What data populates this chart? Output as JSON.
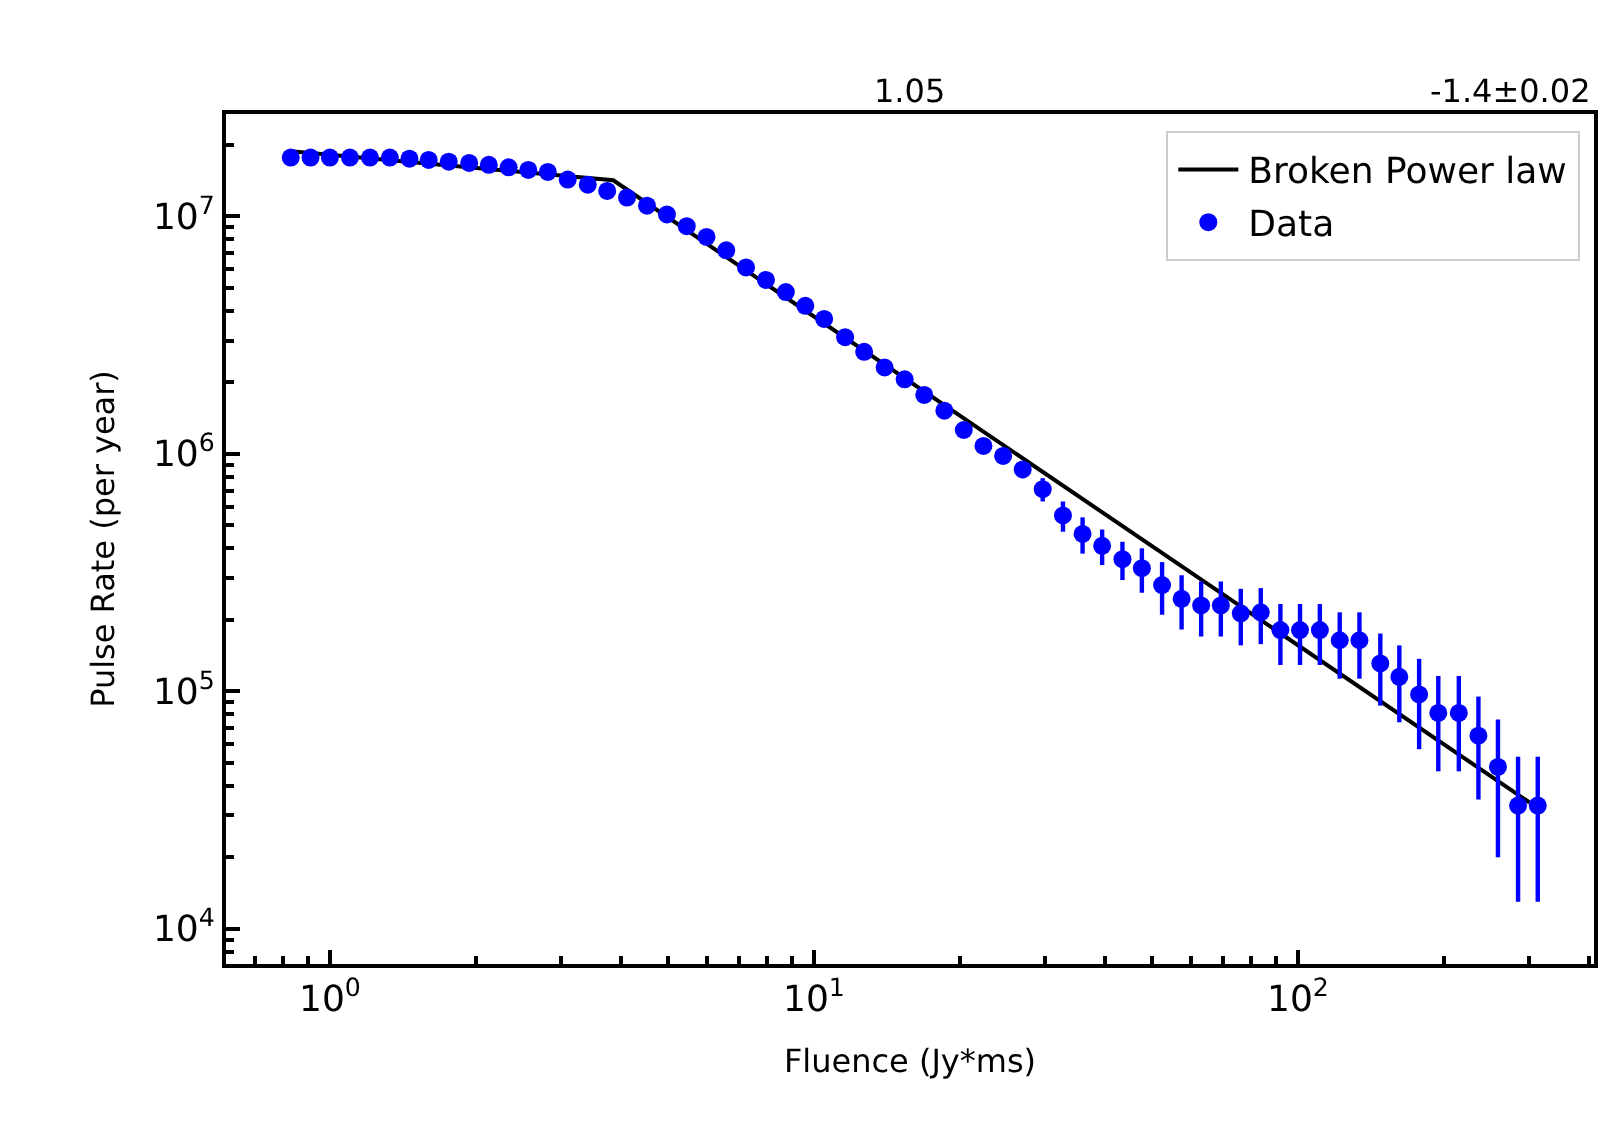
{
  "chart_data": {
    "type": "scatter",
    "xlabel": "Fluence (Jy*ms)",
    "ylabel": "Pulse Rate (per year)",
    "annotations": [
      "1.05",
      "-1.4±0.02"
    ],
    "log": "xy",
    "legend": "top right",
    "xlim": [
      0.61,
      409
    ],
    "ylim": [
      7100,
      27000000
    ],
    "xticks": [
      {
        "value": 1,
        "label": "10$^{0}$"
      },
      {
        "value": 10,
        "label": "10$^{1}$"
      },
      {
        "value": 100,
        "label": "10$^{2}$"
      }
    ],
    "yticks": [
      {
        "value": 10000,
        "label": "10$^{4}$"
      },
      {
        "value": 100000,
        "label": "10$^{5}$"
      },
      {
        "value": 1000000,
        "label": "10$^{6}$"
      },
      {
        "value": 10000000,
        "label": "10$^{7}$"
      }
    ],
    "series": [
      {
        "name": "Broken Power law",
        "type": "line",
        "color": "#000000",
        "line_style": "solid",
        "marker": "none",
        "x": [
          0.83,
          3.85,
          301
        ],
        "values": [
          18800000,
          14200000,
          34000
        ]
      },
      {
        "name": "Data",
        "color": "#0000ff",
        "marker": "circle",
        "x": [
          0.83,
          0.912,
          1.0,
          1.1,
          1.21,
          1.33,
          1.46,
          1.6,
          1.76,
          1.94,
          2.13,
          2.34,
          2.57,
          2.82,
          3.1,
          3.41,
          3.74,
          4.11,
          4.52,
          4.97,
          5.46,
          6.0,
          6.59,
          7.24,
          7.96,
          8.75,
          9.6,
          10.5,
          11.6,
          12.7,
          14.0,
          15.4,
          16.9,
          18.6,
          20.4,
          22.4,
          24.6,
          27.0,
          29.7,
          32.7,
          35.9,
          39.4,
          43.4,
          47.6,
          52.4,
          57.5,
          63.1,
          69.3,
          76.2,
          83.8,
          92.0,
          101,
          111,
          122,
          134,
          148,
          162,
          178,
          195,
          215,
          236,
          259,
          285,
          313
        ],
        "values": [
          17700000,
          17700000,
          17700000,
          17700000,
          17700000,
          17700000,
          17500000,
          17300000,
          17000000,
          16800000,
          16500000,
          16100000,
          15700000,
          15400000,
          14300000,
          13600000,
          12800000,
          12000000,
          11100000,
          10200000,
          9100000,
          8200000,
          7200000,
          6100000,
          5400000,
          4800000,
          4200000,
          3700000,
          3100000,
          2690000,
          2310000,
          2060000,
          1770000,
          1520000,
          1260000,
          1080000,
          980000,
          860000,
          710000,
          550000,
          460000,
          410000,
          360000,
          330000,
          280000,
          245000,
          230000,
          230000,
          213000,
          215000,
          181000,
          181000,
          181000,
          164000,
          164000,
          131000,
          115000,
          97000,
          81000,
          81000,
          65000,
          48000,
          33000,
          33000
        ],
        "errors": [
          null,
          null,
          null,
          null,
          null,
          null,
          null,
          null,
          null,
          null,
          null,
          null,
          null,
          null,
          null,
          null,
          null,
          null,
          null,
          null,
          null,
          null,
          null,
          null,
          null,
          null,
          null,
          null,
          null,
          null,
          null,
          null,
          null,
          null,
          null,
          null,
          null,
          70000,
          80000,
          80000,
          80000,
          70000,
          66000,
          70000,
          70000,
          63000,
          60000,
          60000,
          57000,
          57000,
          52000,
          52000,
          52000,
          51000,
          51000,
          44000,
          41000,
          40000,
          35000,
          35000,
          30000,
          28000,
          20000,
          20000
        ]
      }
    ]
  }
}
